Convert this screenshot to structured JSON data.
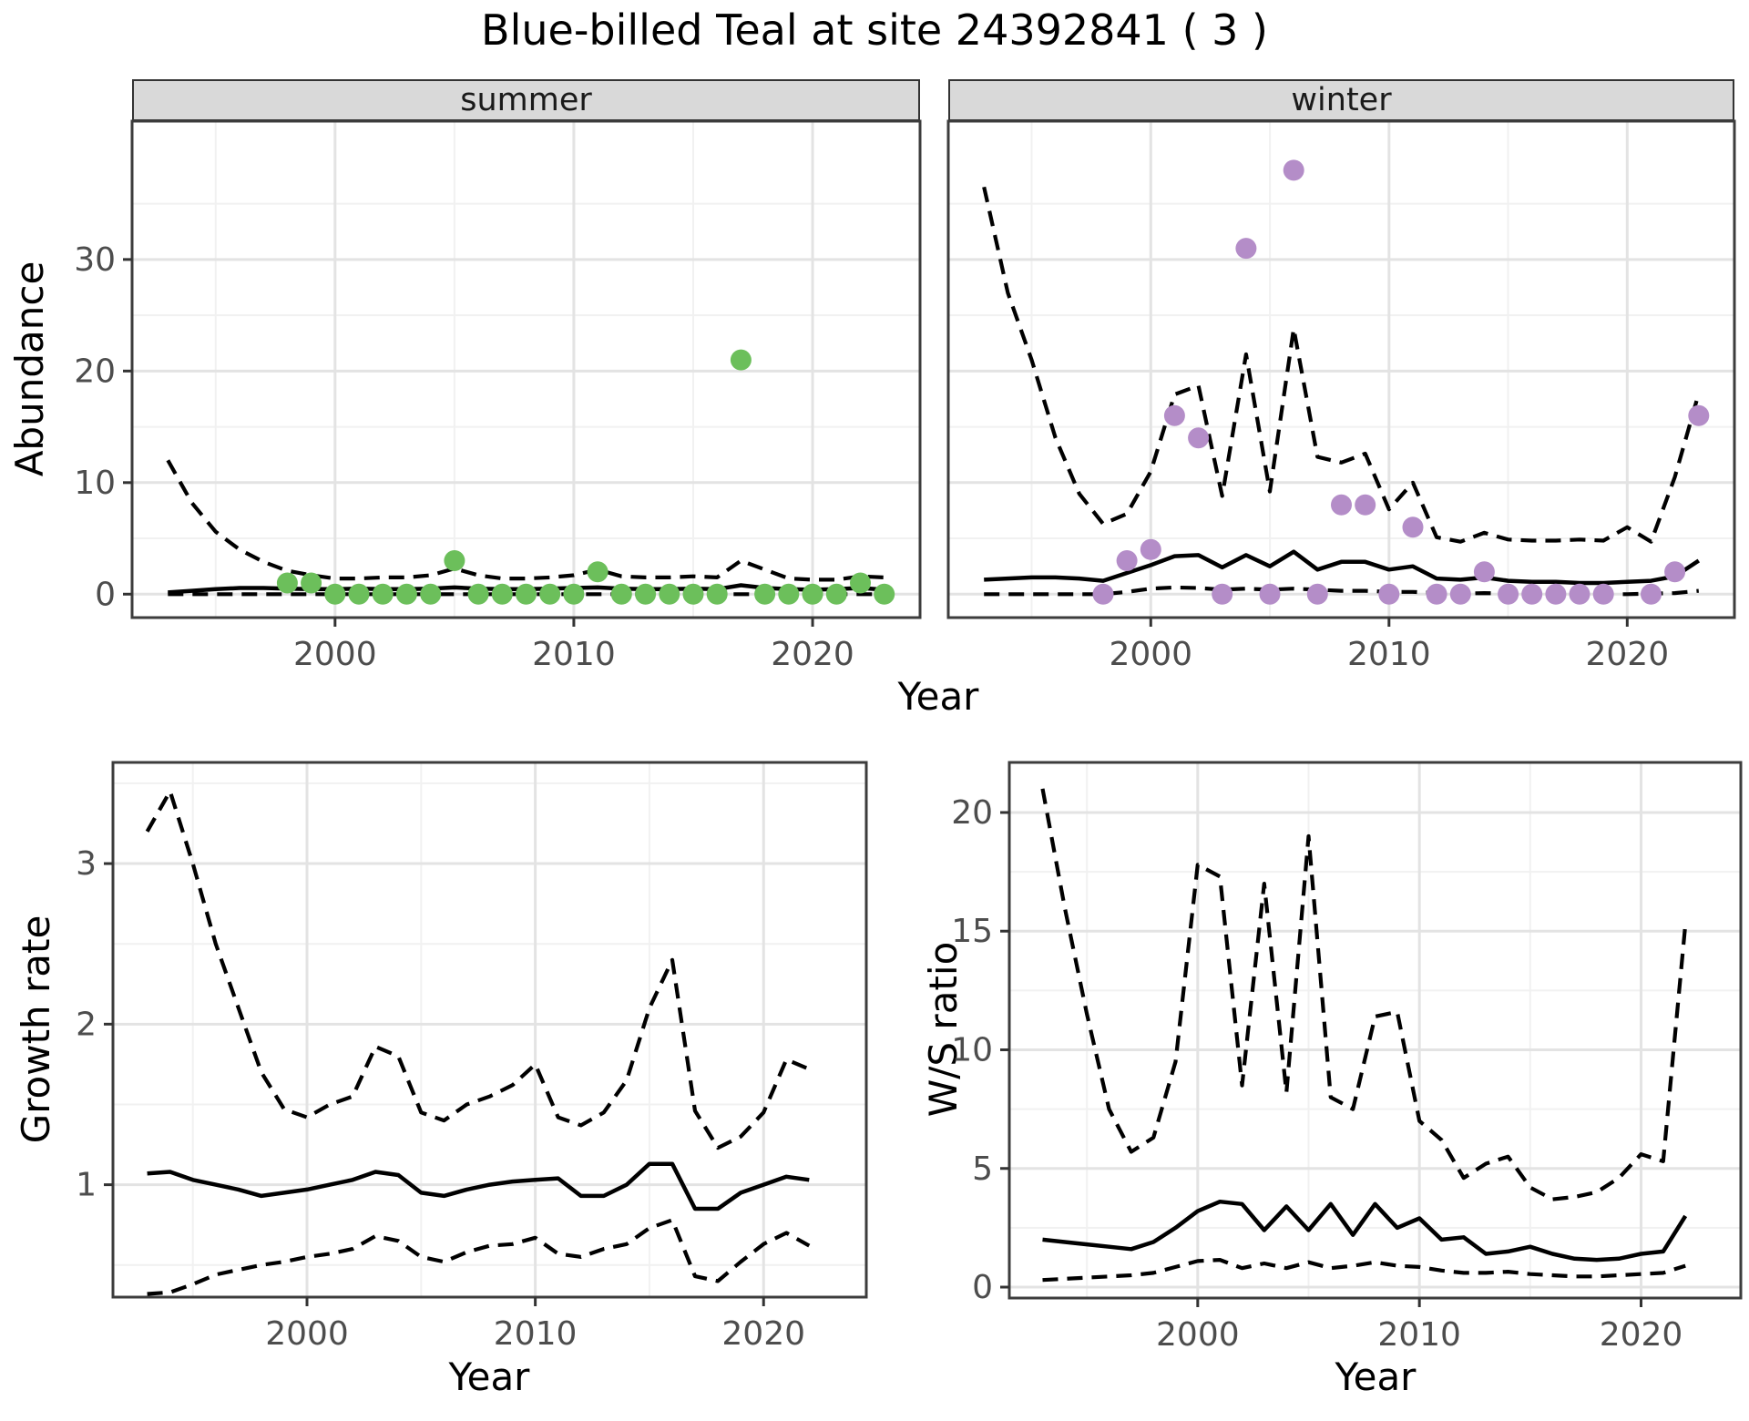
{
  "title": "Blue-billed Teal at site 24392841 ( 3 )",
  "colors": {
    "summer_point": "#6cbf5b",
    "winter_point": "#b48dc8",
    "line": "#000000",
    "grid_major": "#e3e3e3",
    "grid_minor": "#f1f1f1",
    "panel_border": "#3c3c3c",
    "strip_fill": "#d9d9d9",
    "tick_text": "#4d4d4d",
    "tick_mark": "#333333"
  },
  "chart_data": [
    {
      "id": "summer",
      "type": "line+scatter",
      "facet_label": "summer",
      "xlabel": "Year",
      "ylabel": "Abundance",
      "xlim": [
        1991.5,
        2024.5
      ],
      "ylim": [
        -2.1,
        42.4
      ],
      "x_ticks": [
        2000,
        2010,
        2020
      ],
      "y_ticks": [
        0,
        10,
        20,
        30
      ],
      "x_minor": [
        1995,
        2005,
        2015
      ],
      "y_minor": [
        5,
        15,
        25,
        35
      ],
      "grid": true,
      "legend": "none",
      "x": [
        1993,
        1994,
        1995,
        1996,
        1997,
        1998,
        1999,
        2000,
        2001,
        2002,
        2003,
        2004,
        2005,
        2006,
        2007,
        2008,
        2009,
        2010,
        2011,
        2012,
        2013,
        2014,
        2015,
        2016,
        2017,
        2018,
        2019,
        2020,
        2021,
        2022,
        2023
      ],
      "series": [
        {
          "name": "upper_95ci",
          "style": "dashed",
          "values": [
            12,
            8.2,
            5.6,
            4.0,
            2.9,
            2.1,
            1.7,
            1.4,
            1.4,
            1.5,
            1.5,
            1.7,
            2.3,
            1.7,
            1.4,
            1.4,
            1.5,
            1.7,
            2.2,
            1.6,
            1.5,
            1.5,
            1.6,
            1.5,
            3.0,
            2.2,
            1.4,
            1.3,
            1.3,
            1.6,
            1.5
          ]
        },
        {
          "name": "median",
          "style": "solid",
          "values": [
            0.15,
            0.3,
            0.45,
            0.55,
            0.55,
            0.5,
            0.45,
            0.45,
            0.5,
            0.45,
            0.45,
            0.5,
            0.6,
            0.5,
            0.45,
            0.45,
            0.5,
            0.55,
            0.6,
            0.5,
            0.45,
            0.45,
            0.5,
            0.45,
            0.8,
            0.55,
            0.45,
            0.4,
            0.45,
            0.55,
            0.4
          ]
        },
        {
          "name": "lower_95ci",
          "style": "dashed",
          "values": [
            0,
            0,
            0,
            0,
            0,
            0,
            0,
            0,
            0,
            0,
            0,
            0,
            0,
            0,
            0,
            0,
            0,
            0,
            0,
            0,
            0,
            0,
            0,
            0,
            0,
            0,
            0,
            0,
            0,
            0,
            0
          ]
        }
      ],
      "points": {
        "name": "observed_counts",
        "color_key": "summer_point",
        "x": [
          1998,
          1999,
          2000,
          2001,
          2002,
          2003,
          2004,
          2005,
          2006,
          2007,
          2008,
          2009,
          2010,
          2011,
          2012,
          2013,
          2014,
          2015,
          2016,
          2017,
          2018,
          2019,
          2020,
          2021,
          2022,
          2023
        ],
        "y": [
          1,
          1,
          0,
          0,
          0,
          0,
          0,
          3,
          0,
          0,
          0,
          0,
          0,
          2,
          0,
          0,
          0,
          0,
          0,
          21,
          0,
          0,
          0,
          0,
          1,
          0
        ]
      }
    },
    {
      "id": "winter",
      "type": "line+scatter",
      "facet_label": "winter",
      "xlabel": "Year",
      "ylabel": "Abundance",
      "xlim": [
        1991.5,
        2024.5
      ],
      "ylim": [
        -2.1,
        42.4
      ],
      "x_ticks": [
        2000,
        2010,
        2020
      ],
      "y_ticks": [
        0,
        10,
        20,
        30
      ],
      "x_minor": [
        1995,
        2005,
        2015
      ],
      "y_minor": [
        5,
        15,
        25,
        35
      ],
      "grid": true,
      "legend": "none",
      "x": [
        1993,
        1994,
        1995,
        1996,
        1997,
        1998,
        1999,
        2000,
        2001,
        2002,
        2003,
        2004,
        2005,
        2006,
        2007,
        2008,
        2009,
        2010,
        2011,
        2012,
        2013,
        2014,
        2015,
        2016,
        2017,
        2018,
        2019,
        2020,
        2021,
        2022,
        2023
      ],
      "series": [
        {
          "name": "upper_95ci",
          "style": "dashed",
          "values": [
            36.5,
            27,
            21,
            14,
            9,
            6.3,
            7.2,
            11,
            17.9,
            18.7,
            8.8,
            21.5,
            9.2,
            23.8,
            12.3,
            11.8,
            12.6,
            7.6,
            10,
            5.1,
            4.7,
            5.5,
            4.9,
            4.8,
            4.8,
            4.9,
            4.8,
            6.0,
            4.7,
            10.5,
            18
          ]
        },
        {
          "name": "median",
          "style": "solid",
          "values": [
            1.3,
            1.4,
            1.5,
            1.5,
            1.4,
            1.2,
            1.9,
            2.6,
            3.4,
            3.5,
            2.4,
            3.5,
            2.5,
            3.8,
            2.2,
            2.9,
            2.9,
            2.2,
            2.5,
            1.4,
            1.3,
            1.5,
            1.2,
            1.1,
            1.1,
            1.0,
            1.0,
            1.1,
            1.2,
            1.6,
            3.0
          ]
        },
        {
          "name": "lower_95ci",
          "style": "dashed",
          "values": [
            0,
            0,
            0,
            0,
            0,
            0,
            0.2,
            0.5,
            0.6,
            0.55,
            0.4,
            0.5,
            0.4,
            0.5,
            0.4,
            0.3,
            0.3,
            0.2,
            0.2,
            0.1,
            0.05,
            0.1,
            0.05,
            0,
            0,
            0,
            0,
            0,
            0.05,
            0.1,
            0.3
          ]
        }
      ],
      "points": {
        "name": "observed_counts",
        "color_key": "winter_point",
        "x": [
          1998,
          1999,
          2000,
          2001,
          2002,
          2003,
          2004,
          2005,
          2006,
          2007,
          2008,
          2009,
          2010,
          2011,
          2012,
          2013,
          2014,
          2015,
          2016,
          2017,
          2018,
          2019,
          2021,
          2022,
          2023
        ],
        "y": [
          0,
          3,
          4,
          16,
          14,
          0,
          31,
          0,
          38,
          0,
          8,
          8,
          0,
          6,
          0,
          0,
          2,
          0,
          0,
          0,
          0,
          0,
          0,
          2,
          16
        ]
      }
    },
    {
      "id": "growth",
      "type": "line",
      "facet_label": "",
      "xlabel": "Year",
      "ylabel": "Growth rate",
      "xlim": [
        1991.5,
        2024.5
      ],
      "ylim": [
        0.3,
        3.63
      ],
      "x_ticks": [
        2000,
        2010,
        2020
      ],
      "y_ticks": [
        1,
        2,
        3
      ],
      "x_minor": [
        1995,
        2005,
        2015
      ],
      "y_minor": [
        0.5,
        1.5,
        2.5,
        3.5
      ],
      "grid": true,
      "legend": "none",
      "x": [
        1993,
        1994,
        1995,
        1996,
        1997,
        1998,
        1999,
        2000,
        2001,
        2002,
        2003,
        2004,
        2005,
        2006,
        2007,
        2008,
        2009,
        2010,
        2011,
        2012,
        2013,
        2014,
        2015,
        2016,
        2017,
        2018,
        2019,
        2020,
        2021,
        2022
      ],
      "series": [
        {
          "name": "upper_95ci",
          "style": "dashed",
          "values": [
            3.2,
            3.45,
            3.0,
            2.5,
            2.1,
            1.7,
            1.47,
            1.42,
            1.5,
            1.55,
            1.86,
            1.8,
            1.45,
            1.4,
            1.5,
            1.55,
            1.62,
            1.75,
            1.42,
            1.37,
            1.45,
            1.65,
            2.1,
            2.4,
            1.46,
            1.23,
            1.3,
            1.45,
            1.78,
            1.72
          ]
        },
        {
          "name": "median",
          "style": "solid",
          "values": [
            1.07,
            1.08,
            1.03,
            1.0,
            0.97,
            0.93,
            0.95,
            0.97,
            1.0,
            1.03,
            1.08,
            1.06,
            0.95,
            0.93,
            0.97,
            1.0,
            1.02,
            1.03,
            1.04,
            0.93,
            0.93,
            1.0,
            1.13,
            1.13,
            0.85,
            0.85,
            0.95,
            1.0,
            1.05,
            1.03
          ]
        },
        {
          "name": "lower_95ci",
          "style": "dashed",
          "values": [
            0.32,
            0.33,
            0.38,
            0.44,
            0.47,
            0.5,
            0.52,
            0.55,
            0.57,
            0.6,
            0.68,
            0.65,
            0.55,
            0.52,
            0.58,
            0.62,
            0.63,
            0.67,
            0.57,
            0.55,
            0.6,
            0.63,
            0.73,
            0.78,
            0.43,
            0.4,
            0.52,
            0.63,
            0.7,
            0.62
          ]
        }
      ]
    },
    {
      "id": "ws",
      "type": "line",
      "facet_label": "",
      "xlabel": "Year",
      "ylabel": "W/S ratio",
      "xlim": [
        1991.5,
        2024.5
      ],
      "ylim": [
        -0.46,
        22.11
      ],
      "x_ticks": [
        2000,
        2010,
        2020
      ],
      "y_ticks": [
        0,
        5,
        10,
        15,
        20
      ],
      "x_minor": [
        1995,
        2005,
        2015
      ],
      "y_minor": [
        2.5,
        7.5,
        12.5,
        17.5
      ],
      "grid": true,
      "legend": "none",
      "x": [
        1993,
        1994,
        1995,
        1996,
        1997,
        1998,
        1999,
        2000,
        2001,
        2002,
        2003,
        2004,
        2005,
        2006,
        2007,
        2008,
        2009,
        2010,
        2011,
        2012,
        2013,
        2014,
        2015,
        2016,
        2017,
        2018,
        2019,
        2020,
        2021,
        2022
      ],
      "series": [
        {
          "name": "upper_95ci",
          "style": "dashed",
          "values": [
            21,
            16,
            11.5,
            7.5,
            5.7,
            6.3,
            9.5,
            17.8,
            17.3,
            8.5,
            17.0,
            8.2,
            19.0,
            8.0,
            7.5,
            11.4,
            11.6,
            7.0,
            6.2,
            4.6,
            5.2,
            5.5,
            4.2,
            3.7,
            3.8,
            4.0,
            4.6,
            5.6,
            5.3,
            15.3
          ]
        },
        {
          "name": "median",
          "style": "solid",
          "values": [
            2.0,
            1.9,
            1.8,
            1.7,
            1.6,
            1.9,
            2.5,
            3.2,
            3.6,
            3.5,
            2.4,
            3.4,
            2.4,
            3.5,
            2.2,
            3.5,
            2.5,
            2.9,
            2.0,
            2.1,
            1.4,
            1.5,
            1.7,
            1.4,
            1.2,
            1.15,
            1.2,
            1.4,
            1.5,
            3.0
          ]
        },
        {
          "name": "lower_95ci",
          "style": "dashed",
          "values": [
            0.3,
            0.35,
            0.4,
            0.45,
            0.5,
            0.6,
            0.85,
            1.1,
            1.15,
            0.8,
            1.0,
            0.8,
            1.05,
            0.8,
            0.9,
            1.05,
            0.9,
            0.85,
            0.7,
            0.6,
            0.6,
            0.65,
            0.55,
            0.5,
            0.45,
            0.45,
            0.5,
            0.55,
            0.6,
            0.9
          ]
        }
      ]
    }
  ]
}
